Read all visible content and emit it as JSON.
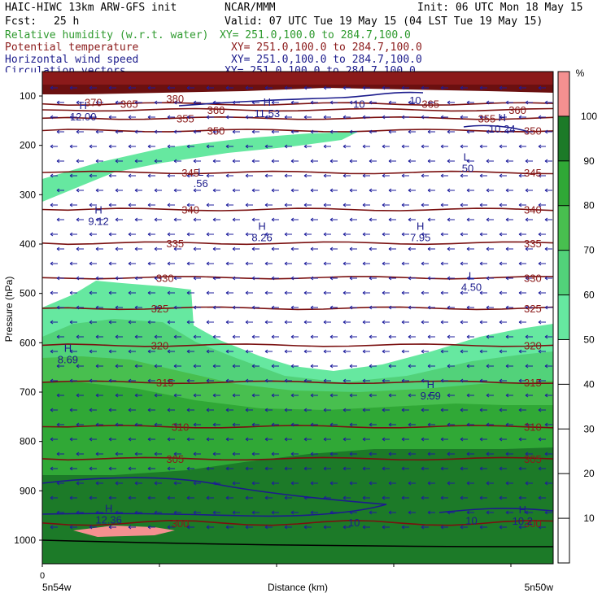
{
  "header": {
    "model": "HAIC-HIWC 13km ARW-GFS init",
    "center": "NCAR/MMM",
    "init": "Init: 06 UTC Mon 18 May 15",
    "fcst_label": "Fcst:",
    "fcst_value": "25 h",
    "valid": "Valid: 07 UTC Tue 19 May 15 (04 LST Tue 19 May 15)",
    "fields": [
      {
        "name": "Relative humidity (w.r.t. water)",
        "xy": "XY= 251.0,100.0 to 284.7,100.0",
        "color": "#2e9a2e"
      },
      {
        "name": "Potential temperature",
        "xy": "XY= 251.0,100.0 to 284.7,100.0",
        "color": "#8b1a1a"
      },
      {
        "name": "Horizontal wind speed",
        "xy": "XY= 251.0,100.0 to 284.7,100.0",
        "color": "#1c1c8c"
      },
      {
        "name": "Circulation vectors",
        "xy": "XY= 251.0,100.0 to 284.7,100.0",
        "color": "#1c1c8c"
      }
    ]
  },
  "chart_data": {
    "type": "heatmap",
    "title": "",
    "xlabel": "Distance (km)",
    "ylabel": "Pressure (hPa)",
    "x_start_label": "5n54w",
    "x_end_label": "5n50w",
    "x_zero_label": "0",
    "y_ticks": [
      100,
      200,
      300,
      400,
      500,
      600,
      700,
      800,
      900,
      1000
    ],
    "colorbar": {
      "unit": "%",
      "ticks": [
        10,
        20,
        30,
        40,
        50,
        60,
        70,
        80,
        90,
        100
      ],
      "bands": [
        {
          "from": 0,
          "to": 50,
          "color": "#ffffff"
        },
        {
          "from": 50,
          "to": 60,
          "color": "#66e8a0"
        },
        {
          "from": 60,
          "to": 70,
          "color": "#52d27a"
        },
        {
          "from": 70,
          "to": 80,
          "color": "#48bf4f"
        },
        {
          "from": 80,
          "to": 90,
          "color": "#30a836"
        },
        {
          "from": 90,
          "to": 100,
          "color": "#1c7a28"
        },
        {
          "from": 100,
          "to": 110,
          "color": "#f49090"
        }
      ]
    },
    "theta_contours": [
      {
        "level": 300,
        "p": 965
      },
      {
        "level": 305,
        "p": 835
      },
      {
        "level": 310,
        "p": 770
      },
      {
        "level": 315,
        "p": 680
      },
      {
        "level": 320,
        "p": 605
      },
      {
        "level": 325,
        "p": 530
      },
      {
        "level": 330,
        "p": 468
      },
      {
        "level": 335,
        "p": 398
      },
      {
        "level": 340,
        "p": 330
      },
      {
        "level": 345,
        "p": 255
      },
      {
        "level": 350,
        "p": 170
      },
      {
        "level": 355,
        "p": 145
      },
      {
        "level": 360,
        "p": 128
      },
      {
        "level": 365,
        "p": 116
      }
    ],
    "theta_labels": [
      {
        "text": "300",
        "x": 0.27,
        "p": 965
      },
      {
        "text": "305",
        "x": 0.26,
        "p": 835
      },
      {
        "text": "310",
        "x": 0.27,
        "p": 770
      },
      {
        "text": "315",
        "x": 0.24,
        "p": 680
      },
      {
        "text": "320",
        "x": 0.23,
        "p": 605
      },
      {
        "text": "325",
        "x": 0.23,
        "p": 530
      },
      {
        "text": "330",
        "x": 0.24,
        "p": 468
      },
      {
        "text": "335",
        "x": 0.26,
        "p": 398
      },
      {
        "text": "340",
        "x": 0.29,
        "p": 330
      },
      {
        "text": "345",
        "x": 0.29,
        "p": 255
      },
      {
        "text": "350",
        "x": 0.34,
        "p": 170
      },
      {
        "text": "355",
        "x": 0.28,
        "p": 145
      },
      {
        "text": "360",
        "x": 0.34,
        "p": 128
      },
      {
        "text": "365",
        "x": 0.17,
        "p": 116
      },
      {
        "text": "370",
        "x": 0.1,
        "p": 112
      },
      {
        "text": "380",
        "x": 0.26,
        "p": 105
      },
      {
        "text": "365",
        "x": 0.76,
        "p": 116
      },
      {
        "text": "360",
        "x": 0.93,
        "p": 128
      },
      {
        "text": "355",
        "x": 0.87,
        "p": 145
      },
      {
        "text": "350",
        "x": 0.96,
        "p": 170
      },
      {
        "text": "345",
        "x": 0.96,
        "p": 255
      },
      {
        "text": "340",
        "x": 0.96,
        "p": 330
      },
      {
        "text": "335",
        "x": 0.96,
        "p": 398
      },
      {
        "text": "330",
        "x": 0.96,
        "p": 468
      },
      {
        "text": "325",
        "x": 0.96,
        "p": 530
      },
      {
        "text": "320",
        "x": 0.96,
        "p": 605
      },
      {
        "text": "315",
        "x": 0.96,
        "p": 680
      },
      {
        "text": "310",
        "x": 0.96,
        "p": 770
      },
      {
        "text": "305",
        "x": 0.96,
        "p": 835
      },
      {
        "text": "300",
        "x": 0.96,
        "p": 965
      }
    ],
    "wind_labels": [
      {
        "kind": "H",
        "value": "9.12",
        "x": 0.11,
        "p": 345
      },
      {
        "kind": "H",
        "value": "8.26",
        "x": 0.43,
        "p": 378
      },
      {
        "kind": "H",
        "value": "7.95",
        "x": 0.74,
        "p": 378
      },
      {
        "kind": "L",
        "value": "4.50",
        "x": 0.84,
        "p": 478
      },
      {
        "kind": "L",
        "value": ".50",
        "x": 0.83,
        "p": 238
      },
      {
        "kind": "L",
        "value": ".56",
        "x": 0.31,
        "p": 268
      },
      {
        "kind": "H",
        "value": "8.69",
        "x": 0.05,
        "p": 625
      },
      {
        "kind": "H",
        "value": "9.59",
        "x": 0.76,
        "p": 698
      },
      {
        "kind": "H",
        "value": "12.36",
        "x": 0.13,
        "p": 950
      },
      {
        "kind": "H",
        "value": "10.2",
        "x": 0.94,
        "p": 952
      },
      {
        "kind": "H",
        "value": "10.24",
        "x": 0.9,
        "p": 158
      },
      {
        "kind": "H",
        "value": "12.00",
        "x": 0.08,
        "p": 133
      },
      {
        "kind": "H",
        "value": "11.53",
        "x": 0.44,
        "p": 126
      }
    ],
    "speed_labels": [
      {
        "text": "10",
        "x": 0.61,
        "p": 964
      },
      {
        "text": "10",
        "x": 0.84,
        "p": 960
      },
      {
        "text": "10",
        "x": 0.73,
        "p": 108
      },
      {
        "text": "10",
        "x": 0.62,
        "p": 116
      }
    ]
  }
}
